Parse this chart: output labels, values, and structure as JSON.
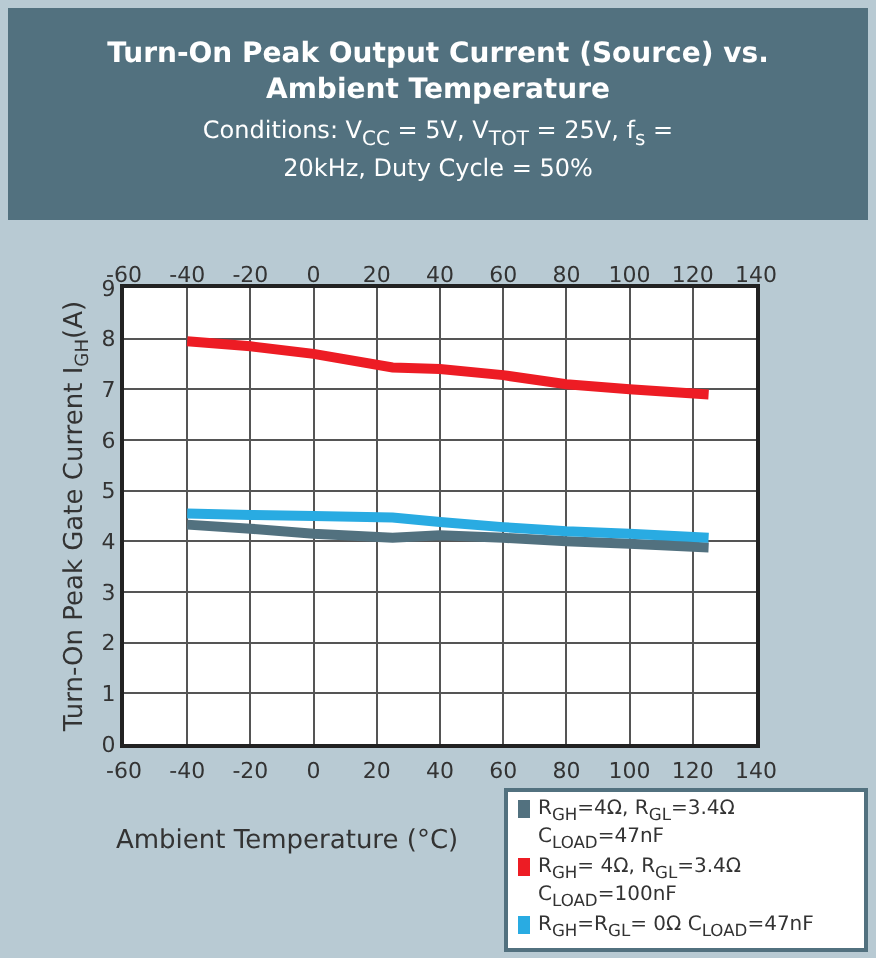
{
  "chart_data": {
    "type": "line",
    "title": "Turn-On Peak Output Current (Source) vs. Ambient Temperature",
    "subtitle": "Conditions: V$_{CC}$ = 5V, V$_{TOT}$ = 25V, f$_{s}$ = 20kHz, Duty Cycle = 50%",
    "xlabel": "Ambient Temperature (°C)",
    "ylabel": "Turn-On Peak Gate Current I$_{GH}$(A)",
    "x": [
      -40,
      -20,
      0,
      25,
      40,
      60,
      80,
      100,
      125
    ],
    "series": [
      {
        "name": "R$_{GH}$=4Ω, R$_{GL}$=3.4Ω C$_{LOAD}$=47nF",
        "color": "#52717f",
        "values": [
          4.33,
          4.25,
          4.15,
          4.07,
          4.12,
          4.07,
          4.0,
          3.95,
          3.88
        ]
      },
      {
        "name": "R$_{GH}$= 4Ω, R$_{GL}$=3.4Ω C$_{LOAD}$=100nF",
        "color": "#ed1c24",
        "values": [
          7.95,
          7.85,
          7.7,
          7.43,
          7.4,
          7.28,
          7.1,
          7.0,
          6.9
        ]
      },
      {
        "name": "R$_{GH}$=R$_{GL}$= 0Ω C$_{LOAD}$=47nF",
        "color": "#29abe2",
        "values": [
          4.55,
          4.52,
          4.5,
          4.47,
          4.38,
          4.28,
          4.2,
          4.15,
          4.07
        ]
      }
    ],
    "xlim": [
      -60,
      140
    ],
    "xticks": [
      -60,
      -40,
      -20,
      0,
      20,
      40,
      60,
      80,
      100,
      120,
      140
    ],
    "x2lim": [
      -60,
      140
    ],
    "x2ticks": [
      -60,
      -40,
      -20,
      0,
      20,
      40,
      60,
      80,
      100,
      120,
      140
    ],
    "ylim": [
      0,
      9
    ],
    "yticks": [
      0,
      1,
      2,
      3,
      4,
      5,
      6,
      7,
      8,
      9
    ],
    "grid": true,
    "legend": "bottom right",
    "marker": "none",
    "line_style": "solid"
  }
}
